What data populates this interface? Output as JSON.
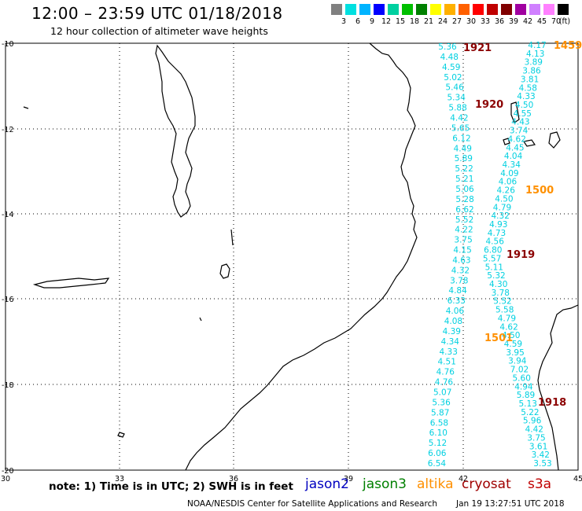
{
  "header": {
    "title": "12:00 – 23:59 UTC 01/18/2018",
    "subtitle": "12 hour collection of altimeter wave heights"
  },
  "scale": {
    "colors": [
      "#808080",
      "#00e0e0",
      "#00b4ff",
      "#0000ff",
      "#00d0a0",
      "#00c000",
      "#008000",
      "#ffff00",
      "#ffb000",
      "#ff6000",
      "#ff0000",
      "#c00000",
      "#800000",
      "#a000a0",
      "#d080ff",
      "#ff80ff",
      "#000000"
    ],
    "labels": [
      "3",
      "6",
      "9",
      "12",
      "15",
      "18",
      "21",
      "24",
      "27",
      "30",
      "33",
      "36",
      "39",
      "42",
      "45",
      "70",
      "(ft)"
    ]
  },
  "axes": {
    "lon_labels": [
      "30",
      "33",
      "36",
      "39",
      "42",
      "45"
    ],
    "lat_labels": [
      "-10",
      "-12",
      "-14",
      "-16",
      "-18",
      "-20"
    ]
  },
  "times": {
    "t1921": "1921",
    "t1920": "1920",
    "t1919": "1919",
    "t1918": "1918",
    "t1459": "1459",
    "t1500": "1500",
    "t1501": "1501"
  },
  "track_a": [
    "5.36",
    "4.48",
    "4.59",
    "5.02",
    "5.46",
    "5.34",
    "5.88",
    "4.42",
    "5.65",
    "6.12",
    "4.49",
    "5.89",
    "5.22",
    "5.21",
    "5.06",
    "5.28",
    "6.62",
    "5.52",
    "4.22",
    "3.75",
    "4.15",
    "4.63",
    "4.32",
    "3.78",
    "4.84",
    "6.33",
    "4.06",
    "4.08",
    "4.39",
    "4.34",
    "4.33",
    "4.51",
    "4.76",
    "4.76",
    "5.07",
    "5.36",
    "5.87",
    "6.58",
    "6.10",
    "5.12",
    "6.06",
    "6.54"
  ],
  "track_b": [
    "4.17",
    "4.13",
    "3.89",
    "3.86",
    "3.81",
    "4.58",
    "4.33",
    "4.50",
    "4.55",
    "4.43",
    "3.74",
    "4.62",
    "4.45",
    "4.04",
    "4.34",
    "4.09",
    "4.06",
    "4.26",
    "4.50",
    "4.79",
    "4.32",
    "4.93",
    "4.73",
    "4.56",
    "6.80",
    "5.57",
    "5.11",
    "5.32",
    "4.30",
    "3.78",
    "5.52",
    "5.58",
    "4.79",
    "4.62",
    "4.50",
    "4.59",
    "3.95",
    "3.94",
    "7.02",
    "5.60",
    "4.94",
    "5.89",
    "5.13",
    "5.22",
    "5.96",
    "4.42",
    "3.75",
    "3.61",
    "3.42",
    "3.53"
  ],
  "footer": {
    "note": "note: 1) Time is in UTC; 2) SWH is in feet",
    "sats": [
      {
        "name": "jason2",
        "color": "#0000c0"
      },
      {
        "name": "jason3",
        "color": "#008000"
      },
      {
        "name": "altika",
        "color": "#ff9000"
      },
      {
        "name": "cryosat",
        "color": "#a00000"
      },
      {
        "name": "s3a",
        "color": "#c00000"
      }
    ],
    "credit": "NOAA/NESDIS Center for Satellite Applications and Research",
    "stamp": "Jan 19 13:27:51 UTC 2018"
  }
}
